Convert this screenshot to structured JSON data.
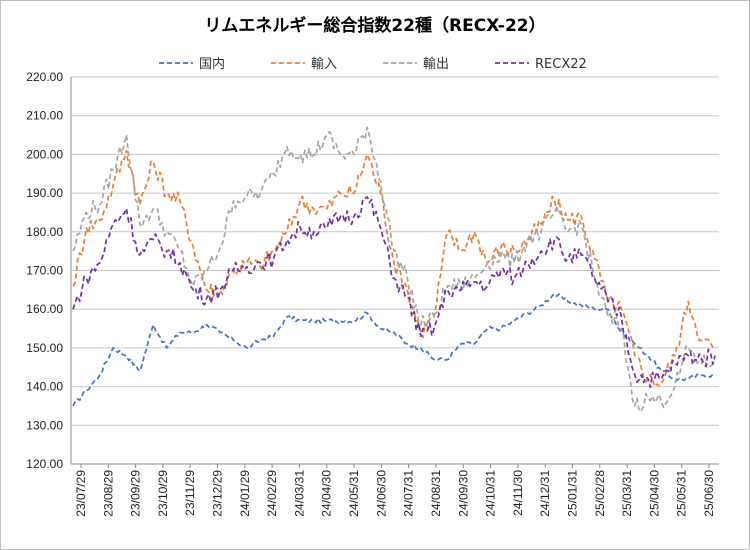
{
  "chart_data": {
    "type": "line",
    "title": "リムエネルギー総合指数22種（RECX-22）",
    "xlabel": "",
    "ylabel": "",
    "ylim": [
      120,
      220
    ],
    "y_ticks": [
      "120.00",
      "130.00",
      "140.00",
      "150.00",
      "160.00",
      "170.00",
      "180.00",
      "190.00",
      "200.00",
      "210.00",
      "220.00"
    ],
    "x_ticks": [
      "23/07/29",
      "23/08/29",
      "23/09/29",
      "23/10/29",
      "23/11/29",
      "23/12/29",
      "24/01/29",
      "24/02/29",
      "24/03/31",
      "24/04/30",
      "24/05/31",
      "24/06/30",
      "24/07/31",
      "24/08/31",
      "24/09/30",
      "24/10/31",
      "24/11/30",
      "24/12/31",
      "25/01/31",
      "25/02/28",
      "25/03/31",
      "25/04/30",
      "25/05/31",
      "25/06/30"
    ],
    "grid": true,
    "legend_position": "top",
    "x": [
      "23/07/29",
      "23/08/12",
      "23/08/29",
      "23/09/12",
      "23/09/29",
      "23/10/12",
      "23/10/29",
      "23/11/12",
      "23/11/29",
      "23/12/12",
      "23/12/29",
      "24/01/12",
      "24/01/29",
      "24/02/12",
      "24/02/29",
      "24/03/12",
      "24/03/31",
      "24/04/12",
      "24/04/30",
      "24/05/12",
      "24/05/31",
      "24/06/12",
      "24/06/30",
      "24/07/12",
      "24/07/31",
      "24/08/12",
      "24/08/31",
      "24/09/12",
      "24/09/30",
      "24/10/12",
      "24/10/31",
      "24/11/12",
      "24/11/30",
      "24/12/12",
      "24/12/31",
      "25/01/12",
      "25/01/31",
      "25/02/12",
      "25/02/28",
      "25/03/12",
      "25/03/31",
      "25/04/12",
      "25/04/30",
      "25/05/12",
      "25/05/31",
      "25/06/12",
      "25/06/30",
      "25/07/12",
      "25/07/28"
    ],
    "series": [
      {
        "name": "国内",
        "color": "#4472C4",
        "values": [
          135,
          139,
          143,
          150,
          148,
          144,
          156,
          150,
          154,
          154,
          156,
          154,
          152,
          150,
          152,
          153,
          158,
          157,
          157,
          157,
          157,
          157,
          159,
          155,
          154,
          151,
          150,
          147,
          147,
          151,
          151,
          155,
          155,
          157,
          159,
          161,
          164,
          162,
          161,
          160,
          160,
          154,
          151,
          148,
          144,
          142,
          142,
          143,
          143
        ]
      },
      {
        "name": "輸入",
        "color": "#ED7D31",
        "values": [
          166,
          181,
          183,
          192,
          201,
          187,
          198,
          190,
          188,
          176,
          165,
          165,
          170,
          172,
          171,
          175,
          180,
          188,
          186,
          186,
          190,
          190,
          200,
          190,
          172,
          165,
          154,
          158,
          180,
          175,
          180,
          172,
          176,
          175,
          178,
          182,
          188,
          183,
          184,
          173,
          162,
          160,
          148,
          142,
          141,
          148,
          162,
          152,
          150
        ]
      },
      {
        "name": "輸出",
        "color": "#A5A5A5",
        "values": [
          175,
          185,
          187,
          196,
          205,
          182,
          186,
          180,
          175,
          166,
          170,
          176,
          188,
          189,
          190,
          195,
          202,
          200,
          200,
          205,
          200,
          200,
          207,
          193,
          175,
          168,
          156,
          158,
          166,
          166,
          168,
          172,
          174,
          172,
          178,
          180,
          185,
          180,
          182,
          168,
          158,
          155,
          135,
          137,
          136,
          140,
          150,
          146,
          147
        ]
      },
      {
        "name": "RECX22",
        "color": "#7030A0",
        "values": [
          160,
          168,
          172,
          182,
          186,
          174,
          178,
          175,
          172,
          165,
          163,
          165,
          170,
          171,
          172,
          173,
          178,
          181,
          180,
          181,
          184,
          184,
          189,
          181,
          168,
          163,
          153,
          155,
          165,
          165,
          167,
          166,
          170,
          168,
          172,
          175,
          178,
          173,
          174,
          168,
          162,
          158,
          143,
          142,
          142,
          146,
          148,
          147,
          148
        ]
      }
    ]
  }
}
